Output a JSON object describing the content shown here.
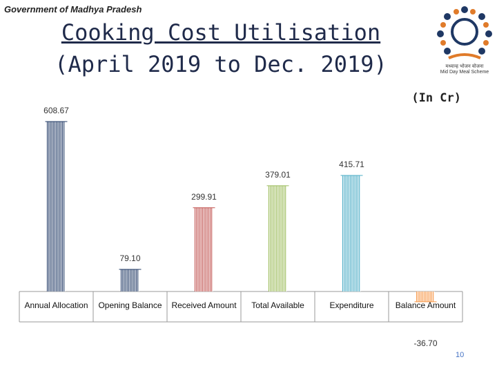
{
  "header": {
    "government": "Government of Madhya Pradesh",
    "title_line1": "Cooking Cost Utilisation",
    "title_line2": "(April 2019 to Dec. 2019)",
    "unit": "(In Cr)"
  },
  "logo": {
    "icon": "mid-day-meal-logo-icon",
    "text_hindi": "मध्यान्ह भोजन योजना",
    "text_english": "Mid Day Meal Scheme"
  },
  "page_number": "10",
  "chart_data": {
    "type": "bar",
    "title": "Cooking Cost Utilisation",
    "categories": [
      "Annual  Allocation",
      "Opening Balance",
      "Received Amount",
      "Total Available",
      "Expenditure",
      "Balance Amount"
    ],
    "values": [
      608.67,
      79.1,
      299.91,
      379.01,
      415.71,
      -36.7
    ],
    "value_labels": [
      "608.67",
      "79.10",
      "299.91",
      "379.01",
      "415.71",
      "-36.70"
    ],
    "colors": [
      "#1f3864",
      "#1f3864",
      "#c0504d",
      "#9bbb59",
      "#4bacc6",
      "#f79646"
    ],
    "ylim": [
      -90,
      620
    ],
    "grid": false,
    "legend": "none"
  }
}
